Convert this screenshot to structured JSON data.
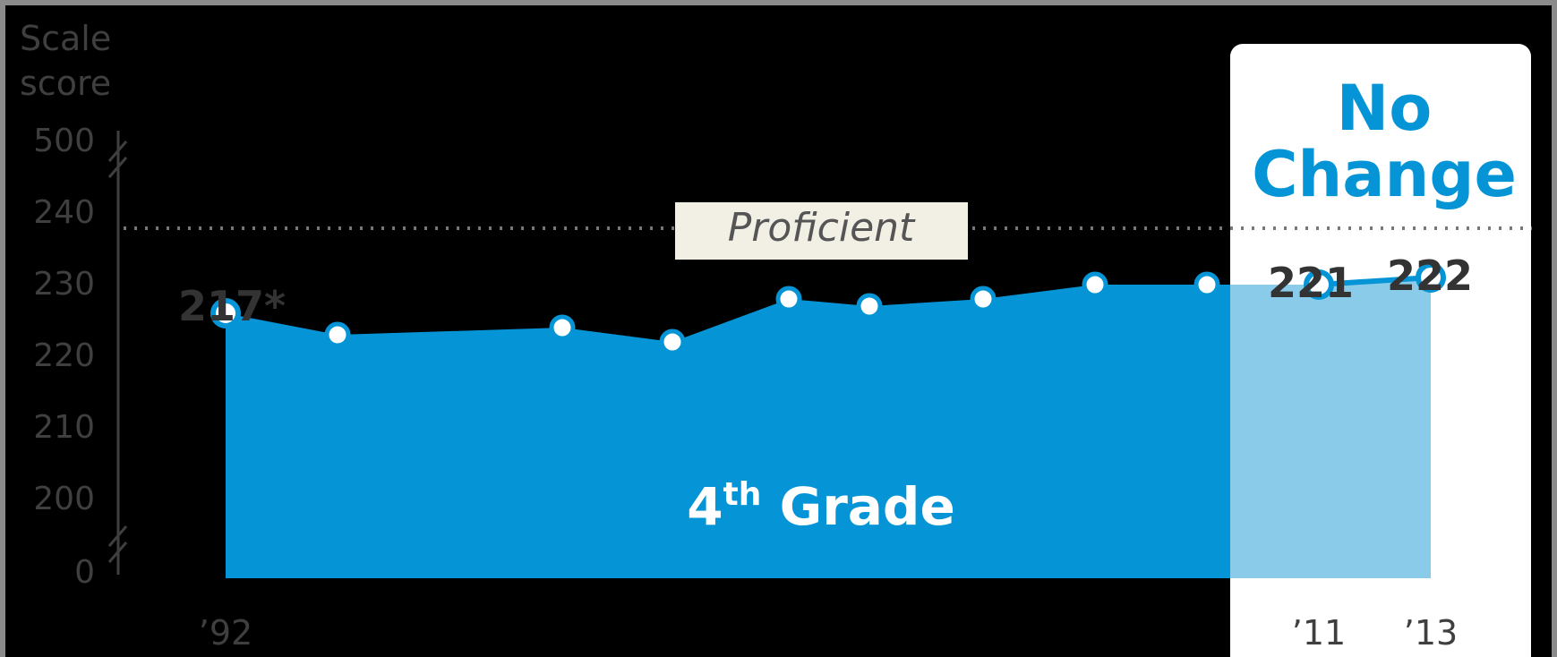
{
  "chart_data": {
    "type": "area",
    "y_axis_title": "Scale\nscore",
    "y_ticks": [
      "500",
      "240",
      "230",
      "220",
      "210",
      "200",
      "0"
    ],
    "ylim_visible": [
      200,
      240
    ],
    "axis_breaks": [
      "between 500 and 240",
      "between 200 and 0"
    ],
    "x_tick_labels": [
      "’92",
      "’11",
      "’13"
    ],
    "series": [
      {
        "name": "4th Grade",
        "x": [
          1992,
          1994,
          1998,
          2000,
          2002,
          2003,
          2005,
          2007,
          2009,
          2011,
          2013
        ],
        "values": [
          217,
          214,
          215,
          213,
          219,
          218,
          219,
          221,
          221,
          221,
          222
        ]
      }
    ],
    "proficient_line": {
      "label": "Proficient",
      "value": 238
    },
    "annotations": {
      "start_value": "217*",
      "value_2011": "221",
      "value_2013": "222"
    },
    "series_label": {
      "main": "4",
      "superscript": "th",
      "suffix": " Grade"
    },
    "highlight": {
      "title": "No\nChange",
      "range": [
        "’11",
        "’13"
      ]
    },
    "colors": {
      "background": "#000000",
      "area": "#0595d6",
      "highlight_area": "#8bcbea",
      "highlight_panel": "#ffffff",
      "text": "#3f3f3f",
      "proficient_box": "#f2f0e5",
      "dotted_line": "#777777"
    },
    "legend": "none",
    "grid": false
  }
}
